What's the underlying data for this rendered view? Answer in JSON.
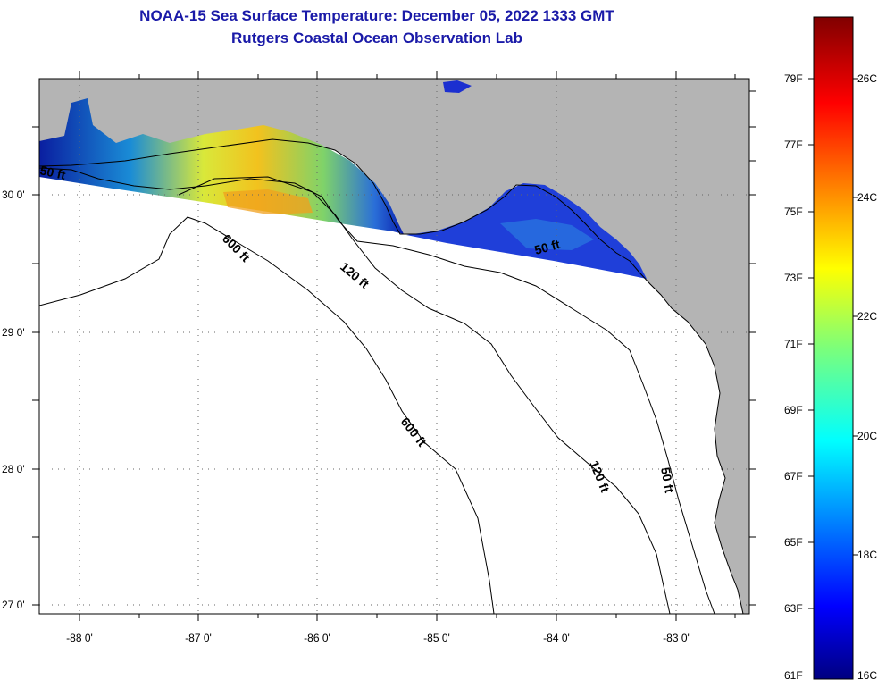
{
  "header": {
    "title": "NOAA-15 Sea Surface Temperature:  December 05, 2022 1333 GMT",
    "subtitle": "Rutgers Coastal Ocean Observation Lab"
  },
  "map": {
    "lon_ticks": [
      "-88 0'",
      "-87 0'",
      "-86 0'",
      "-85 0'",
      "-84 0'",
      "-83 0'"
    ],
    "lat_ticks": [
      "30 0'",
      "29 0'",
      "28 0'",
      "27 0'"
    ],
    "depth_labels": [
      "50 ft",
      "600 ft",
      "120 ft",
      "50 ft",
      "600 ft",
      "120 ft",
      "50 ft"
    ],
    "colors": {
      "land": "#b4b4b4",
      "ocean_nodata": "#ffffff",
      "title": "#1a1aa8"
    }
  },
  "colorbar": {
    "fahrenheit": [
      "79F",
      "77F",
      "75F",
      "73F",
      "71F",
      "69F",
      "67F",
      "65F",
      "63F",
      "61F"
    ],
    "celsius": [
      "26C",
      "24C",
      "22C",
      "20C",
      "18C",
      "16C"
    ],
    "range_c": [
      16,
      27
    ]
  }
}
